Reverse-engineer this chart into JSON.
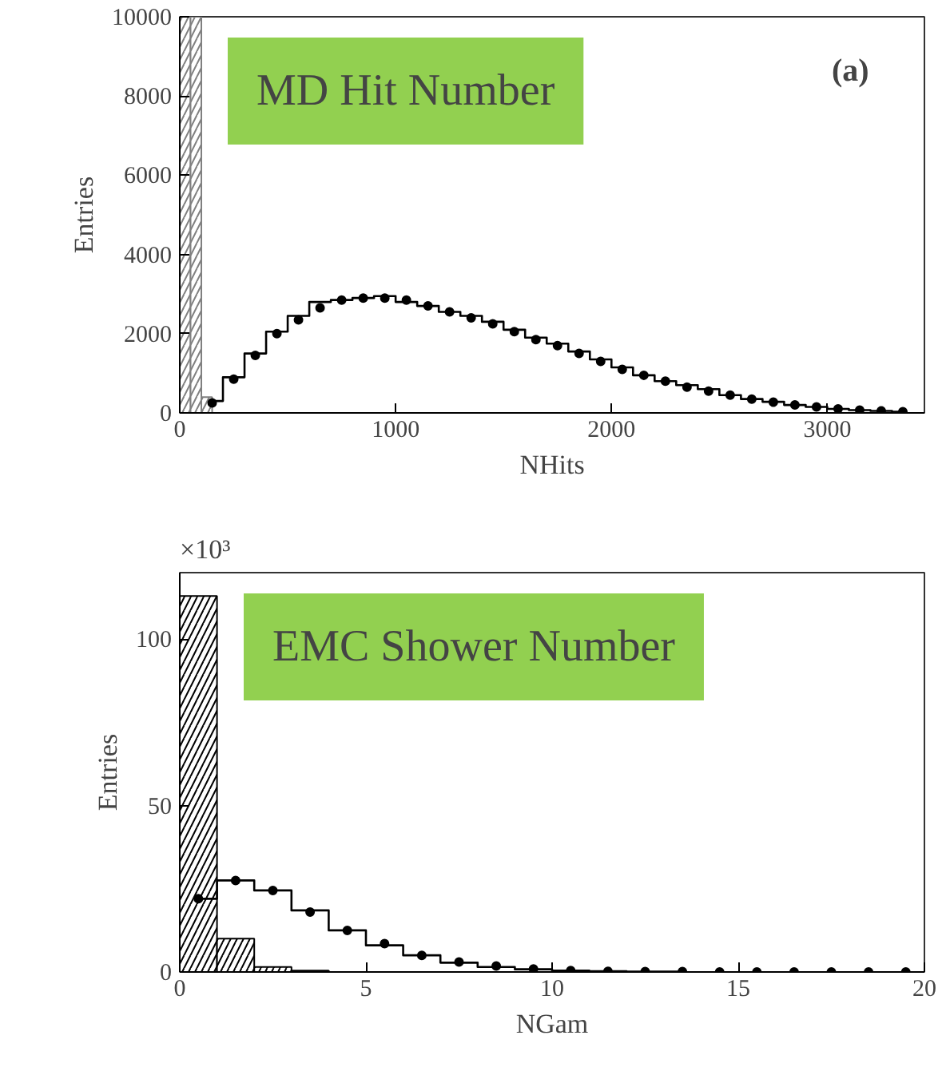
{
  "chart_data": [
    {
      "type": "histogram",
      "title": "MD Hit Number",
      "xlabel": "NHits",
      "ylabel": "Entries",
      "annotations": [
        "(a)"
      ],
      "xlim": [
        0,
        3450
      ],
      "ylim": [
        0,
        10000
      ],
      "xticks": [
        0,
        1000,
        2000,
        3000
      ],
      "yticks": [
        0,
        2000,
        4000,
        6000,
        8000,
        10000
      ],
      "marker": "circle",
      "grid": false,
      "series": [
        {
          "type": "histogram",
          "color": "#808080",
          "bins": [
            0,
            50,
            100,
            150
          ],
          "values": [
            10000,
            10000,
            400
          ]
        },
        {
          "type": "step",
          "marker": "none",
          "color": "#000000",
          "x": [
            150,
            250,
            350,
            450,
            550,
            650,
            750,
            850,
            950,
            1050,
            1150,
            1250,
            1350,
            1450,
            1550,
            1650,
            1750,
            1850,
            1950,
            2050,
            2150,
            2250,
            2350,
            2450,
            2550,
            2650,
            2750,
            2850,
            2950,
            3050,
            3150,
            3250,
            3350
          ],
          "values": [
            300,
            900,
            1500,
            2050,
            2450,
            2800,
            2850,
            2900,
            2950,
            2800,
            2700,
            2550,
            2450,
            2300,
            2100,
            1900,
            1750,
            1550,
            1350,
            1150,
            950,
            800,
            700,
            600,
            450,
            350,
            280,
            200,
            150,
            100,
            70,
            50,
            30
          ]
        },
        {
          "type": "scatter",
          "color": "#000000",
          "x": [
            150,
            250,
            350,
            450,
            550,
            650,
            750,
            850,
            950,
            1050,
            1150,
            1250,
            1350,
            1450,
            1550,
            1650,
            1750,
            1850,
            1950,
            2050,
            2150,
            2250,
            2350,
            2450,
            2550,
            2650,
            2750,
            2850,
            2950,
            3050,
            3150,
            3250,
            3350
          ],
          "values": [
            250,
            850,
            1450,
            2000,
            2350,
            2650,
            2850,
            2900,
            2900,
            2850,
            2700,
            2550,
            2400,
            2250,
            2050,
            1850,
            1700,
            1500,
            1300,
            1100,
            950,
            800,
            650,
            550,
            450,
            350,
            270,
            200,
            150,
            100,
            70,
            50,
            30
          ]
        }
      ]
    },
    {
      "type": "histogram",
      "title": "EMC Shower Number",
      "xlabel": "NGam",
      "ylabel": "Entries",
      "annotations": [
        "×10³"
      ],
      "xlim": [
        0,
        20
      ],
      "ylim": [
        0,
        120
      ],
      "xticks": [
        0,
        5,
        10,
        15,
        20
      ],
      "yticks": [
        0,
        50,
        100
      ],
      "marker": "circle",
      "grid": false,
      "series": [
        {
          "type": "histogram",
          "color": "#000000",
          "bins": [
            0,
            1,
            2,
            3,
            4,
            5,
            6,
            7,
            8,
            9,
            10,
            11,
            12,
            13,
            14
          ],
          "values": [
            113,
            10,
            1.5,
            0.4,
            0,
            0,
            0,
            0,
            0,
            0,
            0,
            0,
            0,
            0
          ]
        },
        {
          "type": "step",
          "marker": "none",
          "color": "#000000",
          "x": [
            0.5,
            1.5,
            2.5,
            3.5,
            4.5,
            5.5,
            6.5,
            7.5,
            8.5,
            9.5,
            10.5,
            11.5,
            12.5,
            13.5
          ],
          "values": [
            22,
            27.5,
            24.5,
            18.5,
            12.5,
            8,
            5,
            2.8,
            1.5,
            0.8,
            0.4,
            0.2,
            0.1,
            0.1
          ]
        },
        {
          "type": "scatter",
          "color": "#000000",
          "x": [
            0.5,
            1.5,
            2.5,
            3.5,
            4.5,
            5.5,
            6.5,
            7.5,
            8.5,
            9.5,
            10.5,
            11.5,
            12.5,
            13.5,
            14.5,
            15.5,
            16.5,
            17.5,
            18.5,
            19.5
          ],
          "values": [
            22,
            27.5,
            24.5,
            18,
            12.5,
            8.5,
            5,
            3,
            1.8,
            0.9,
            0.4,
            0.2,
            0.1,
            0.1,
            0,
            0,
            0,
            0,
            0,
            0
          ]
        }
      ]
    }
  ]
}
